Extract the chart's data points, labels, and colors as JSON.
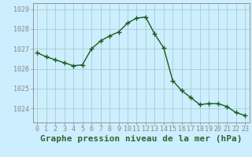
{
  "x": [
    0,
    1,
    2,
    3,
    4,
    5,
    6,
    7,
    8,
    9,
    10,
    11,
    12,
    13,
    14,
    15,
    16,
    17,
    18,
    19,
    20,
    21,
    22,
    23
  ],
  "y": [
    1026.8,
    1026.6,
    1026.45,
    1026.3,
    1026.15,
    1026.2,
    1027.0,
    1027.4,
    1027.65,
    1027.85,
    1028.3,
    1028.55,
    1028.6,
    1027.75,
    1027.05,
    1025.4,
    1024.9,
    1024.55,
    1024.2,
    1024.25,
    1024.25,
    1024.1,
    1023.8,
    1023.65
  ],
  "line_color": "#1a5c1a",
  "marker": "+",
  "marker_size": 4,
  "line_width": 1.0,
  "bg_color": "#cceeff",
  "grid_color": "#aacccc",
  "xlabel": "Graphe pression niveau de la mer (hPa)",
  "xlabel_fontsize": 8,
  "tick_fontsize": 6,
  "ylim": [
    1023.3,
    1029.3
  ],
  "yticks": [
    1024,
    1025,
    1026,
    1027,
    1028,
    1029
  ],
  "xticks": [
    0,
    1,
    2,
    3,
    4,
    5,
    6,
    7,
    8,
    9,
    10,
    11,
    12,
    13,
    14,
    15,
    16,
    17,
    18,
    19,
    20,
    21,
    22,
    23
  ],
  "axis_color": "#336633",
  "spine_color": "#888888"
}
